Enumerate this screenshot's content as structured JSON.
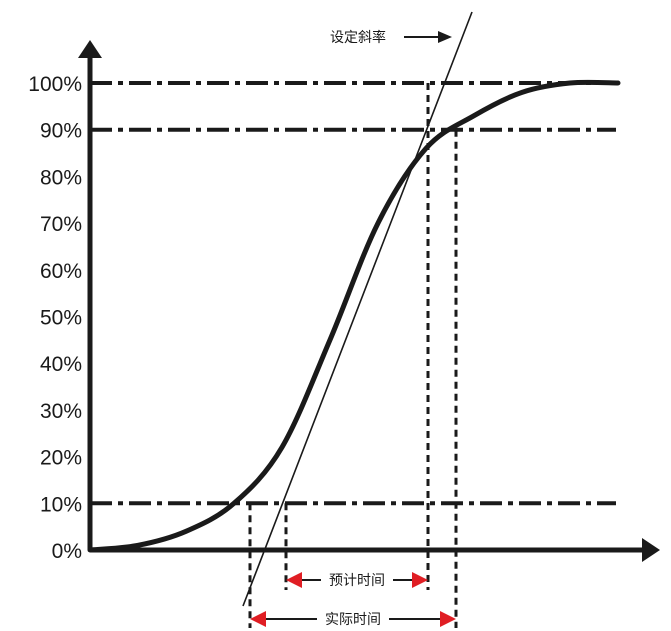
{
  "chart_data": {
    "type": "line",
    "title": "",
    "xlabel": "",
    "ylabel": "",
    "y_ticks": [
      "0%",
      "10%",
      "20%",
      "30%",
      "40%",
      "50%",
      "60%",
      "70%",
      "80%",
      "90%",
      "100%"
    ],
    "ylim": [
      0,
      100
    ],
    "x_ticks": [],
    "series": [
      {
        "values_percent": [
          0,
          1,
          4,
          10,
          22,
          45,
          70,
          86,
          93,
          98,
          100,
          100
        ]
      }
    ],
    "reference_lines_percent": [
      10,
      90,
      100
    ],
    "annotations": {
      "slope_label": "设定斜率",
      "estimated_time_label": "预计时间",
      "actual_time_label": "实际时间"
    },
    "colors": {
      "line": "#1a1a1a",
      "arrow_head": "#e01e24",
      "background": "#ffffff"
    }
  }
}
